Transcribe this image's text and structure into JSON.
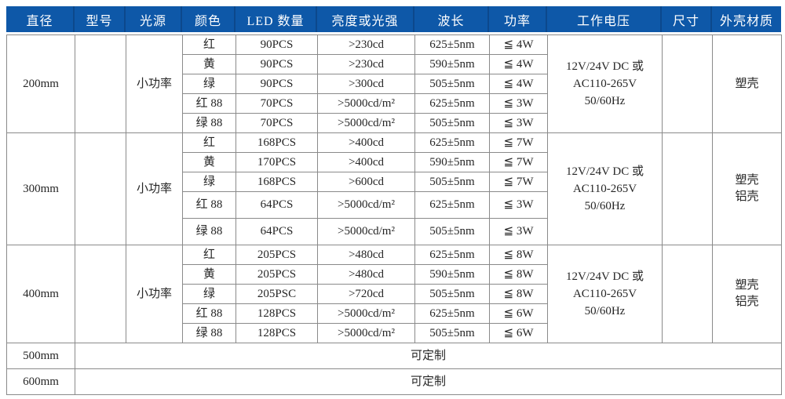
{
  "header": {
    "columns": [
      "直径",
      "型号",
      "光源",
      "颜色",
      "LED 数量",
      "亮度或光强",
      "波长",
      "功率",
      "工作电压",
      "尺寸",
      "外壳材质"
    ]
  },
  "colors": {
    "header_bg": "#0e58a8",
    "header_divider": "#0c488c",
    "header_text": "#ffffff",
    "grid_line": "#8a8a8a",
    "body_text": "#262626"
  },
  "blocks": [
    {
      "diameter": "200mm",
      "model": "",
      "source": "小功率",
      "voltage": [
        "12V/24V DC 或",
        "AC110-265V",
        "50/60Hz"
      ],
      "size": "",
      "material": [
        "塑壳"
      ],
      "rows": [
        {
          "color": "红",
          "led_qty": "90PCS",
          "brightness": ">230cd",
          "wavelength": "625±5nm",
          "power": "≦ 4W"
        },
        {
          "color": "黄",
          "led_qty": "90PCS",
          "brightness": ">230cd",
          "wavelength": "590±5nm",
          "power": "≦ 4W"
        },
        {
          "color": "绿",
          "led_qty": "90PCS",
          "brightness": ">300cd",
          "wavelength": "505±5nm",
          "power": "≦ 4W"
        },
        {
          "color": "红 88",
          "led_qty": "70PCS",
          "brightness": ">5000cd/m²",
          "wavelength": "625±5nm",
          "power": "≦ 3W"
        },
        {
          "color": "绿 88",
          "led_qty": "70PCS",
          "brightness": ">5000cd/m²",
          "wavelength": "505±5nm",
          "power": "≦ 3W"
        }
      ]
    },
    {
      "diameter": "300mm",
      "model": "",
      "source": "小功率",
      "voltage": [
        "12V/24V DC 或",
        "AC110-265V",
        "50/60Hz"
      ],
      "size": "",
      "material": [
        "塑壳",
        "铝壳"
      ],
      "rows": [
        {
          "color": "红",
          "led_qty": "168PCS",
          "brightness": ">400cd",
          "wavelength": "625±5nm",
          "power": "≦ 7W"
        },
        {
          "color": "黄",
          "led_qty": "170PCS",
          "brightness": ">400cd",
          "wavelength": "590±5nm",
          "power": "≦ 7W"
        },
        {
          "color": "绿",
          "led_qty": "168PCS",
          "brightness": ">600cd",
          "wavelength": "505±5nm",
          "power": "≦ 7W"
        },
        {
          "color": "红 88",
          "led_qty": "64PCS",
          "brightness": ">5000cd/m²",
          "wavelength": "625±5nm",
          "power": "≦ 3W"
        },
        {
          "color": "绿 88",
          "led_qty": "64PCS",
          "brightness": ">5000cd/m²",
          "wavelength": "505±5nm",
          "power": "≦ 3W"
        }
      ]
    },
    {
      "diameter": "400mm",
      "model": "",
      "source": "小功率",
      "voltage": [
        "12V/24V DC 或",
        "AC110-265V",
        "50/60Hz"
      ],
      "size": "",
      "material": [
        "塑壳",
        "铝壳"
      ],
      "rows": [
        {
          "color": "红",
          "led_qty": "205PCS",
          "brightness": ">480cd",
          "wavelength": "625±5nm",
          "power": "≦ 8W"
        },
        {
          "color": "黄",
          "led_qty": "205PCS",
          "brightness": ">480cd",
          "wavelength": "590±5nm",
          "power": "≦ 8W"
        },
        {
          "color": "绿",
          "led_qty": "205PSC",
          "brightness": ">720cd",
          "wavelength": "505±5nm",
          "power": "≦ 8W"
        },
        {
          "color": "红 88",
          "led_qty": "128PCS",
          "brightness": ">5000cd/m²",
          "wavelength": "625±5nm",
          "power": "≦ 6W"
        },
        {
          "color": "绿 88",
          "led_qty": "128PCS",
          "brightness": ">5000cd/m²",
          "wavelength": "505±5nm",
          "power": "≦ 6W"
        }
      ]
    }
  ],
  "custom_rows": [
    {
      "diameter": "500mm",
      "note": "可定制"
    },
    {
      "diameter": "600mm",
      "note": "可定制"
    }
  ]
}
